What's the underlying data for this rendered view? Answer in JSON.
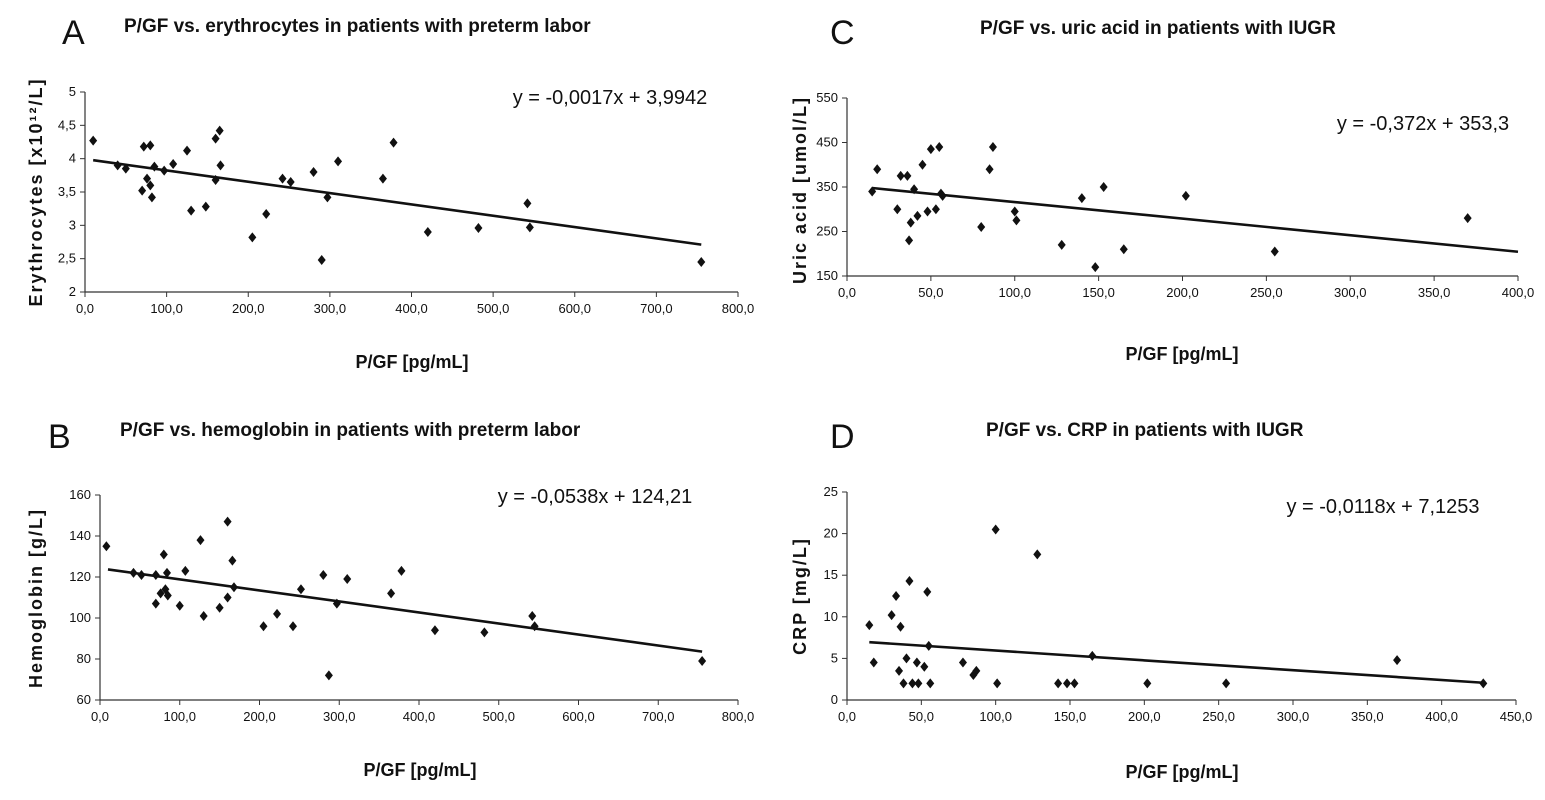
{
  "charts": [
    {
      "id": "A",
      "chart_data": {
        "type": "scatter",
        "letter": "A",
        "title": "P/GF vs. erythrocytes in patients with preterm labor",
        "xlabel": "P/GF [pg/mL]",
        "ylabel": "Erythrocytes [x10¹²/L]",
        "equation": "y = -0,0017x + 3,9942",
        "xlim": [
          0,
          800
        ],
        "ylim": [
          2,
          5
        ],
        "x_ticks": [
          "0,0",
          "100,0",
          "200,0",
          "300,0",
          "400,0",
          "500,0",
          "600,0",
          "700,0",
          "800,0"
        ],
        "x_tick_values": [
          0,
          100,
          200,
          300,
          400,
          500,
          600,
          700,
          800
        ],
        "y_ticks": [
          "2",
          "2,5",
          "3",
          "3,5",
          "4",
          "4,5",
          "5"
        ],
        "y_tick_values": [
          2,
          2.5,
          3,
          3.5,
          4,
          4.5,
          5
        ],
        "trendline": {
          "slope": -0.0017,
          "intercept": 3.9942,
          "x_range": [
            10,
            755
          ]
        },
        "points": [
          [
            10,
            4.27
          ],
          [
            40,
            3.9
          ],
          [
            50,
            3.85
          ],
          [
            70,
            3.52
          ],
          [
            72,
            4.18
          ],
          [
            76,
            3.7
          ],
          [
            80,
            4.2
          ],
          [
            80,
            3.6
          ],
          [
            82,
            3.42
          ],
          [
            85,
            3.88
          ],
          [
            97,
            3.82
          ],
          [
            108,
            3.92
          ],
          [
            125,
            4.12
          ],
          [
            130,
            3.22
          ],
          [
            148,
            3.28
          ],
          [
            160,
            3.68
          ],
          [
            160,
            4.3
          ],
          [
            165,
            4.42
          ],
          [
            166,
            3.9
          ],
          [
            205,
            2.82
          ],
          [
            222,
            3.17
          ],
          [
            242,
            3.7
          ],
          [
            252,
            3.65
          ],
          [
            280,
            3.8
          ],
          [
            290,
            2.48
          ],
          [
            297,
            3.42
          ],
          [
            310,
            3.96
          ],
          [
            365,
            3.7
          ],
          [
            378,
            4.24
          ],
          [
            420,
            2.9
          ],
          [
            482,
            2.96
          ],
          [
            542,
            3.33
          ],
          [
            545,
            2.97
          ],
          [
            755,
            2.45
          ]
        ]
      }
    },
    {
      "id": "B",
      "chart_data": {
        "type": "scatter",
        "letter": "B",
        "title": "P/GF vs. hemoglobin in patients with preterm labor",
        "xlabel": "P/GF [pg/mL]",
        "ylabel": "Hemoglobin [g/L]",
        "equation": "y = -0,0538x + 124,21",
        "xlim": [
          0,
          800
        ],
        "ylim": [
          60,
          160
        ],
        "x_ticks": [
          "0,0",
          "100,0",
          "200,0",
          "300,0",
          "400,0",
          "500,0",
          "600,0",
          "700,0",
          "800,0"
        ],
        "x_tick_values": [
          0,
          100,
          200,
          300,
          400,
          500,
          600,
          700,
          800
        ],
        "y_ticks": [
          "60",
          "80",
          "100",
          "120",
          "140",
          "160"
        ],
        "y_tick_values": [
          60,
          80,
          100,
          120,
          140,
          160
        ],
        "trendline": {
          "slope": -0.0538,
          "intercept": 124.21,
          "x_range": [
            10,
            755
          ]
        },
        "points": [
          [
            8,
            135
          ],
          [
            42,
            122
          ],
          [
            52,
            121
          ],
          [
            70,
            107
          ],
          [
            70,
            121
          ],
          [
            76,
            112
          ],
          [
            80,
            131
          ],
          [
            82,
            114
          ],
          [
            84,
            122
          ],
          [
            85,
            111
          ],
          [
            100,
            106
          ],
          [
            107,
            123
          ],
          [
            126,
            138
          ],
          [
            130,
            101
          ],
          [
            150,
            105
          ],
          [
            160,
            110
          ],
          [
            160,
            147
          ],
          [
            166,
            128
          ],
          [
            168,
            115
          ],
          [
            205,
            96
          ],
          [
            222,
            102
          ],
          [
            242,
            96
          ],
          [
            252,
            114
          ],
          [
            280,
            121
          ],
          [
            287,
            72
          ],
          [
            297,
            107
          ],
          [
            310,
            119
          ],
          [
            365,
            112
          ],
          [
            378,
            123
          ],
          [
            420,
            94
          ],
          [
            482,
            93
          ],
          [
            542,
            101
          ],
          [
            545,
            96
          ],
          [
            755,
            79
          ]
        ]
      }
    },
    {
      "id": "C",
      "chart_data": {
        "type": "scatter",
        "letter": "C",
        "title": "P/GF vs. uric acid in patients with IUGR",
        "xlabel": "P/GF [pg/mL]",
        "ylabel": "Uric acid [umol/L]",
        "equation": "y = -0,372x + 353,3",
        "xlim": [
          0,
          400
        ],
        "ylim": [
          150,
          550
        ],
        "x_ticks": [
          "0,0",
          "50,0",
          "100,0",
          "150,0",
          "200,0",
          "250,0",
          "300,0",
          "350,0",
          "400,0"
        ],
        "x_tick_values": [
          0,
          50,
          100,
          150,
          200,
          250,
          300,
          350,
          400
        ],
        "y_ticks": [
          "150",
          "250",
          "350",
          "450",
          "550"
        ],
        "y_tick_values": [
          150,
          250,
          350,
          450,
          550
        ],
        "trendline": {
          "slope": -0.372,
          "intercept": 353.3,
          "x_range": [
            15,
            400
          ]
        },
        "points": [
          [
            15,
            340
          ],
          [
            18,
            390
          ],
          [
            30,
            300
          ],
          [
            32,
            375
          ],
          [
            36,
            375
          ],
          [
            37,
            230
          ],
          [
            38,
            270
          ],
          [
            40,
            345
          ],
          [
            42,
            285
          ],
          [
            45,
            400
          ],
          [
            48,
            295
          ],
          [
            50,
            435
          ],
          [
            53,
            300
          ],
          [
            55,
            440
          ],
          [
            56,
            335
          ],
          [
            57,
            330
          ],
          [
            80,
            260
          ],
          [
            85,
            390
          ],
          [
            87,
            440
          ],
          [
            100,
            295
          ],
          [
            101,
            275
          ],
          [
            128,
            220
          ],
          [
            140,
            325
          ],
          [
            148,
            170
          ],
          [
            153,
            350
          ],
          [
            165,
            210
          ],
          [
            202,
            330
          ],
          [
            255,
            205
          ],
          [
            370,
            280
          ]
        ]
      }
    },
    {
      "id": "D",
      "chart_data": {
        "type": "scatter",
        "letter": "D",
        "title": "P/GF vs. CRP in patients with IUGR",
        "xlabel": "P/GF [pg/mL]",
        "ylabel": "CRP [mg/L]",
        "equation": "y = -0,0118x + 7,1253",
        "xlim": [
          0,
          450
        ],
        "ylim": [
          0,
          25
        ],
        "x_ticks": [
          "0,0",
          "50,0",
          "100,0",
          "150,0",
          "200,0",
          "250,0",
          "300,0",
          "350,0",
          "400,0",
          "450,0"
        ],
        "x_tick_values": [
          0,
          50,
          100,
          150,
          200,
          250,
          300,
          350,
          400,
          450
        ],
        "y_ticks": [
          "0",
          "5",
          "10",
          "15",
          "20",
          "25"
        ],
        "y_tick_values": [
          0,
          5,
          10,
          15,
          20,
          25
        ],
        "trendline": {
          "slope": -0.0118,
          "intercept": 7.1253,
          "x_range": [
            15,
            428
          ]
        },
        "points": [
          [
            15,
            9
          ],
          [
            18,
            4.5
          ],
          [
            30,
            10.2
          ],
          [
            33,
            12.5
          ],
          [
            35,
            3.5
          ],
          [
            36,
            8.8
          ],
          [
            38,
            2
          ],
          [
            40,
            5
          ],
          [
            42,
            14.3
          ],
          [
            44,
            2
          ],
          [
            47,
            4.5
          ],
          [
            48,
            2
          ],
          [
            52,
            4
          ],
          [
            54,
            13
          ],
          [
            55,
            6.5
          ],
          [
            56,
            2
          ],
          [
            78,
            4.5
          ],
          [
            85,
            3
          ],
          [
            87,
            3.5
          ],
          [
            100,
            20.5
          ],
          [
            101,
            2
          ],
          [
            128,
            17.5
          ],
          [
            142,
            2
          ],
          [
            148,
            2
          ],
          [
            153,
            2
          ],
          [
            165,
            5.3
          ],
          [
            202,
            2
          ],
          [
            255,
            2
          ],
          [
            370,
            4.8
          ],
          [
            428,
            2
          ]
        ]
      }
    }
  ]
}
